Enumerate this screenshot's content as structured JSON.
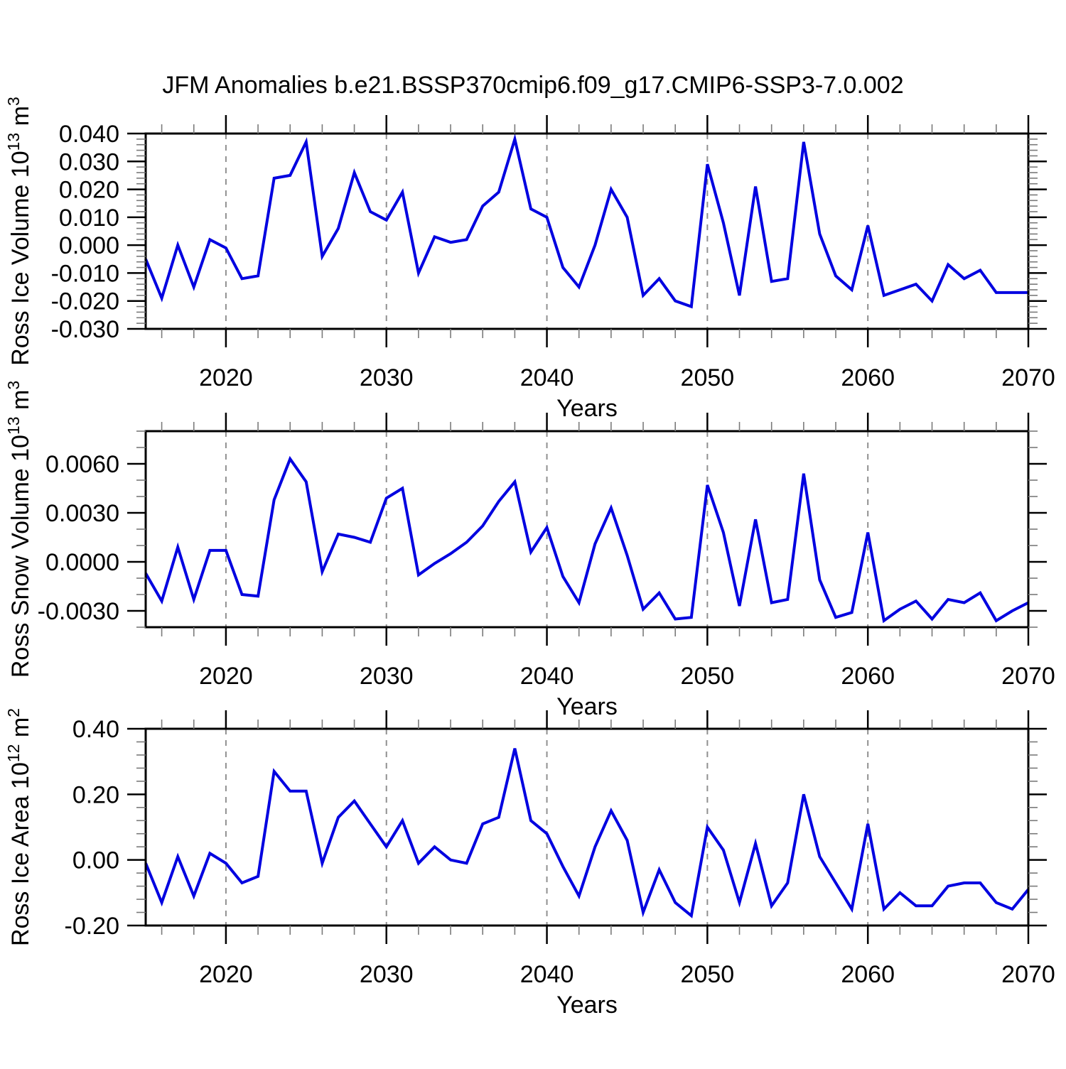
{
  "title": "JFM Anomalies b.e21.BSSP370cmip6.f09_g17.CMIP6-SSP3-7.0.002",
  "colors": {
    "line": "#0000e0",
    "grid_dashed": "#909090",
    "axis": "#000000",
    "minor_tick": "#7a7a7a",
    "background": "#ffffff"
  },
  "chart_data": [
    {
      "type": "line",
      "name": "ross-ice-volume",
      "ylabel_parts": [
        {
          "text": "Ross Ice Volume 10"
        },
        {
          "text": "13",
          "sup": true
        },
        {
          "text": " m"
        },
        {
          "text": "3",
          "sup": true
        }
      ],
      "xlabel": "Years",
      "xlim": [
        2015,
        2070
      ],
      "ylim": [
        -0.03,
        0.04
      ],
      "xticks_major": [
        {
          "v": 2020,
          "label": "2020"
        },
        {
          "v": 2030,
          "label": "2030"
        },
        {
          "v": 2040,
          "label": "2040"
        },
        {
          "v": 2050,
          "label": "2050"
        },
        {
          "v": 2060,
          "label": "2060"
        },
        {
          "v": 2070,
          "label": "2070"
        }
      ],
      "xtick_minor_step": 2,
      "yticks_major": [
        {
          "v": 0.04,
          "label": "0.040"
        },
        {
          "v": 0.03,
          "label": "0.030"
        },
        {
          "v": 0.02,
          "label": "0.020"
        },
        {
          "v": 0.01,
          "label": "0.010"
        },
        {
          "v": 0.0,
          "label": "0.000"
        },
        {
          "v": -0.01,
          "label": "-0.010"
        },
        {
          "v": -0.02,
          "label": "-0.020"
        },
        {
          "v": -0.03,
          "label": "-0.030"
        }
      ],
      "ytick_minor_step": 0.002,
      "grid_x": [
        2020,
        2030,
        2040,
        2050,
        2060
      ],
      "x": [
        2015,
        2016,
        2017,
        2018,
        2019,
        2020,
        2021,
        2022,
        2023,
        2024,
        2025,
        2026,
        2027,
        2028,
        2029,
        2030,
        2031,
        2032,
        2033,
        2034,
        2035,
        2036,
        2037,
        2038,
        2039,
        2040,
        2041,
        2042,
        2043,
        2044,
        2045,
        2046,
        2047,
        2048,
        2049,
        2050,
        2051,
        2052,
        2053,
        2054,
        2055,
        2056,
        2057,
        2058,
        2059,
        2060,
        2061,
        2062,
        2063,
        2064,
        2065,
        2066,
        2067,
        2068,
        2069,
        2070
      ],
      "values": [
        -0.005,
        -0.019,
        0.0,
        -0.015,
        0.002,
        -0.001,
        -0.012,
        -0.011,
        0.024,
        0.025,
        0.037,
        -0.004,
        0.006,
        0.026,
        0.012,
        0.009,
        0.019,
        -0.01,
        0.003,
        0.001,
        0.002,
        0.014,
        0.019,
        0.038,
        0.013,
        0.01,
        -0.008,
        -0.015,
        0.0,
        0.02,
        0.01,
        -0.018,
        -0.012,
        -0.02,
        -0.022,
        0.029,
        0.008,
        -0.018,
        0.021,
        -0.013,
        -0.012,
        0.037,
        0.004,
        -0.011,
        -0.016,
        0.007,
        -0.018,
        -0.016,
        -0.014,
        -0.02,
        -0.007,
        -0.012,
        -0.009,
        -0.017,
        -0.017,
        -0.017
      ]
    },
    {
      "type": "line",
      "name": "ross-snow-volume",
      "ylabel_parts": [
        {
          "text": "Ross Snow Volume 10"
        },
        {
          "text": "13",
          "sup": true
        },
        {
          "text": " m"
        },
        {
          "text": "3",
          "sup": true
        }
      ],
      "xlabel": "Years",
      "xlim": [
        2015,
        2070
      ],
      "ylim": [
        -0.004,
        0.008
      ],
      "xticks_major": [
        {
          "v": 2020,
          "label": "2020"
        },
        {
          "v": 2030,
          "label": "2030"
        },
        {
          "v": 2040,
          "label": "2040"
        },
        {
          "v": 2050,
          "label": "2050"
        },
        {
          "v": 2060,
          "label": "2060"
        },
        {
          "v": 2070,
          "label": "2070"
        }
      ],
      "xtick_minor_step": 2,
      "yticks_major": [
        {
          "v": 0.006,
          "label": "0.0060"
        },
        {
          "v": 0.003,
          "label": "0.0030"
        },
        {
          "v": 0.0,
          "label": "0.0000"
        },
        {
          "v": -0.003,
          "label": "-0.0030"
        }
      ],
      "ytick_minor_step": 0.001,
      "grid_x": [
        2020,
        2030,
        2040,
        2050,
        2060
      ],
      "x": [
        2015,
        2016,
        2017,
        2018,
        2019,
        2020,
        2021,
        2022,
        2023,
        2024,
        2025,
        2026,
        2027,
        2028,
        2029,
        2030,
        2031,
        2032,
        2033,
        2034,
        2035,
        2036,
        2037,
        2038,
        2039,
        2040,
        2041,
        2042,
        2043,
        2044,
        2045,
        2046,
        2047,
        2048,
        2049,
        2050,
        2051,
        2052,
        2053,
        2054,
        2055,
        2056,
        2057,
        2058,
        2059,
        2060,
        2061,
        2062,
        2063,
        2064,
        2065,
        2066,
        2067,
        2068,
        2069,
        2070
      ],
      "values": [
        -0.0007,
        -0.0024,
        0.0009,
        -0.0023,
        0.0007,
        0.0007,
        -0.002,
        -0.0021,
        0.0038,
        0.0063,
        0.0049,
        -0.0006,
        0.0017,
        0.0015,
        0.0012,
        0.0039,
        0.0045,
        -0.0008,
        -0.0001,
        0.0005,
        0.0012,
        0.0022,
        0.0037,
        0.0049,
        0.0006,
        0.0021,
        -0.0009,
        -0.0025,
        0.0011,
        0.0033,
        0.0004,
        -0.0029,
        -0.0019,
        -0.0035,
        -0.0034,
        0.0047,
        0.0018,
        -0.0027,
        0.0026,
        -0.0025,
        -0.0023,
        0.0054,
        -0.0011,
        -0.0034,
        -0.0031,
        0.0018,
        -0.0036,
        -0.0029,
        -0.0024,
        -0.0035,
        -0.0023,
        -0.0025,
        -0.0019,
        -0.0036,
        -0.003,
        -0.0025
      ]
    },
    {
      "type": "line",
      "name": "ross-ice-area",
      "ylabel_parts": [
        {
          "text": "Ross Ice Area 10"
        },
        {
          "text": "12",
          "sup": true
        },
        {
          "text": " m"
        },
        {
          "text": "2",
          "sup": true
        }
      ],
      "xlabel": "Years",
      "xlim": [
        2015,
        2070
      ],
      "ylim": [
        -0.2,
        0.4
      ],
      "xticks_major": [
        {
          "v": 2020,
          "label": "2020"
        },
        {
          "v": 2030,
          "label": "2030"
        },
        {
          "v": 2040,
          "label": "2040"
        },
        {
          "v": 2050,
          "label": "2050"
        },
        {
          "v": 2060,
          "label": "2060"
        },
        {
          "v": 2070,
          "label": "2070"
        }
      ],
      "xtick_minor_step": 2,
      "yticks_major": [
        {
          "v": 0.4,
          "label": "0.40"
        },
        {
          "v": 0.2,
          "label": "0.20"
        },
        {
          "v": 0.0,
          "label": "0.00"
        },
        {
          "v": -0.2,
          "label": "-0.20"
        }
      ],
      "ytick_minor_step": 0.04,
      "grid_x": [
        2020,
        2030,
        2040,
        2050,
        2060
      ],
      "x": [
        2015,
        2016,
        2017,
        2018,
        2019,
        2020,
        2021,
        2022,
        2023,
        2024,
        2025,
        2026,
        2027,
        2028,
        2029,
        2030,
        2031,
        2032,
        2033,
        2034,
        2035,
        2036,
        2037,
        2038,
        2039,
        2040,
        2041,
        2042,
        2043,
        2044,
        2045,
        2046,
        2047,
        2048,
        2049,
        2050,
        2051,
        2052,
        2053,
        2054,
        2055,
        2056,
        2057,
        2058,
        2059,
        2060,
        2061,
        2062,
        2063,
        2064,
        2065,
        2066,
        2067,
        2068,
        2069,
        2070
      ],
      "values": [
        -0.01,
        -0.13,
        0.01,
        -0.11,
        0.02,
        -0.01,
        -0.07,
        -0.05,
        0.27,
        0.21,
        0.21,
        -0.01,
        0.13,
        0.18,
        0.11,
        0.04,
        0.12,
        -0.01,
        0.04,
        0.0,
        -0.01,
        0.11,
        0.13,
        0.34,
        0.12,
        0.08,
        -0.02,
        -0.11,
        0.04,
        0.15,
        0.06,
        -0.16,
        -0.03,
        -0.13,
        -0.17,
        0.1,
        0.03,
        -0.13,
        0.05,
        -0.14,
        -0.07,
        0.2,
        0.01,
        -0.07,
        -0.15,
        0.11,
        -0.15,
        -0.1,
        -0.14,
        -0.14,
        -0.08,
        -0.07,
        -0.07,
        -0.13,
        -0.15,
        -0.09
      ]
    }
  ]
}
